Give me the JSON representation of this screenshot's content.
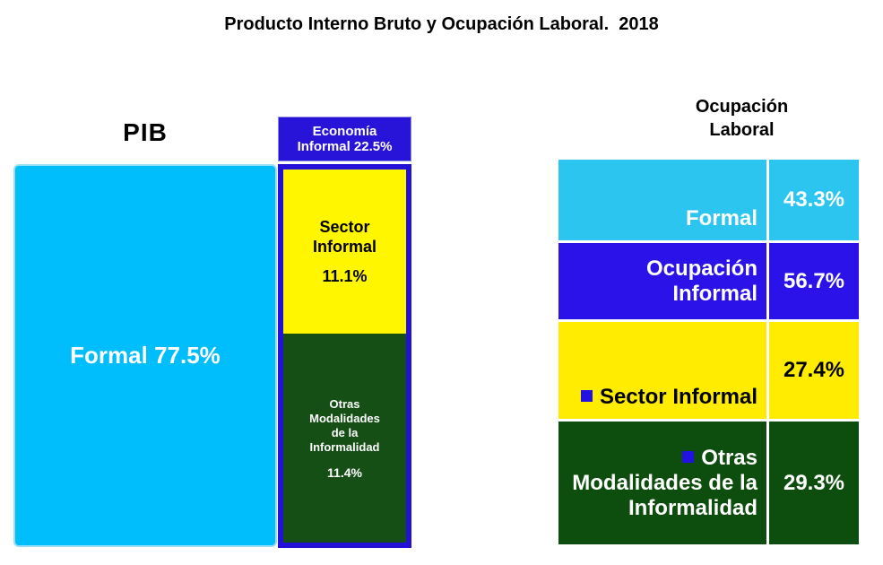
{
  "title": "Producto Interno Bruto y Ocupación Laboral.  2018",
  "pib": {
    "label": "PIB",
    "formal_label": "Formal 77.5%",
    "informal_header": {
      "line1": "Economía",
      "line2": "Informal 22.5%"
    },
    "sector_informal": {
      "line1": "Sector",
      "line2": "Informal",
      "value": "11.1%"
    },
    "otras_modalidades": {
      "line1": "Otras",
      "line2": "Modalidades",
      "line3": "de la",
      "line4": "Informalidad",
      "value": "11.4%"
    }
  },
  "ocupacion": {
    "title_line1": "Ocupación",
    "title_line2": "Laboral",
    "rows": [
      {
        "label": "Formal",
        "value": "43.3%"
      },
      {
        "label": "Ocupación Informal",
        "value": "56.7%"
      },
      {
        "label": "Sector Informal",
        "value": "27.4%"
      },
      {
        "label": "Otras Modalidades de la Informalidad",
        "value": "29.3%"
      }
    ]
  },
  "colors": {
    "cyan_box": "#00BDFC",
    "cyan_row": "#2CC5F0",
    "blue_header": "#2814D8",
    "blue_row": "#2B12E8",
    "yellow_box": "#FFF600",
    "yellow_row": "#FFEC00",
    "green_box": "#154F16",
    "green_row": "#0D4D0D",
    "border_blue": "#2411D8",
    "bullet_blue": "#2211E0"
  },
  "chart_data": [
    {
      "type": "bar",
      "title": "PIB",
      "unit": "%",
      "segments": [
        {
          "label": "Formal",
          "value": 77.5,
          "color": "#00BDFC"
        },
        {
          "label": "Economía Informal",
          "value": 22.5,
          "color": "#2814D8",
          "children": [
            {
              "label": "Sector Informal",
              "value": 11.1,
              "color": "#FFF600"
            },
            {
              "label": "Otras Modalidades de la Informalidad",
              "value": 11.4,
              "color": "#154F16"
            }
          ]
        }
      ]
    },
    {
      "type": "table",
      "title": "Ocupación Laboral",
      "unit": "%",
      "rows": [
        {
          "label": "Formal",
          "value": 43.3,
          "color": "#2CC5F0"
        },
        {
          "label": "Ocupación Informal",
          "value": 56.7,
          "color": "#2B12E8"
        },
        {
          "label": "Sector Informal",
          "value": 27.4,
          "color": "#FFEC00"
        },
        {
          "label": "Otras Modalidades de la Informalidad",
          "value": 29.3,
          "color": "#0D4D0D"
        }
      ]
    }
  ]
}
